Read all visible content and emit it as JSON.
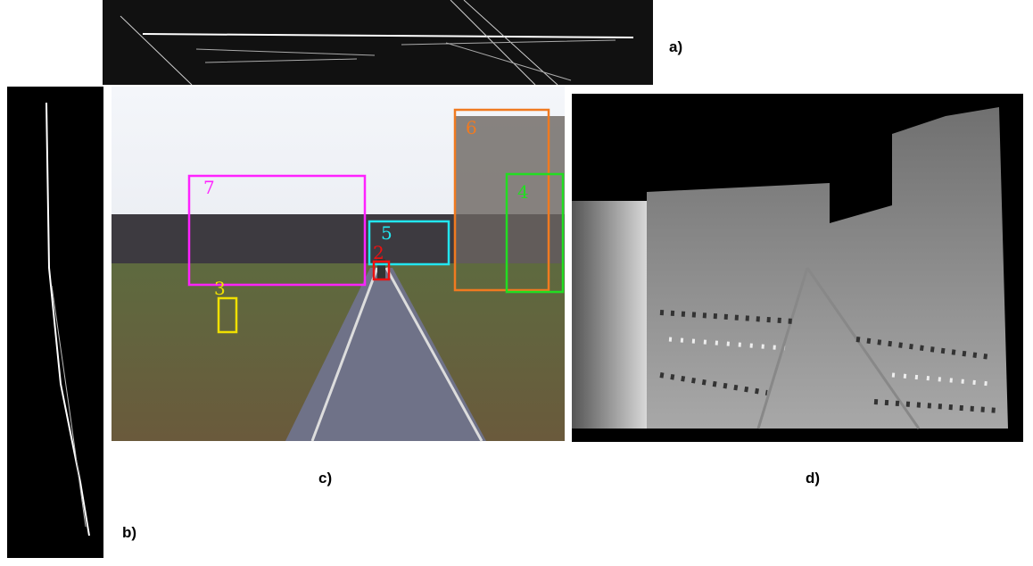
{
  "panel_labels": [
    "a)",
    "b)",
    "c)",
    "d)"
  ],
  "detections": [
    "7",
    "5",
    "2",
    "3",
    "6",
    "4"
  ]
}
